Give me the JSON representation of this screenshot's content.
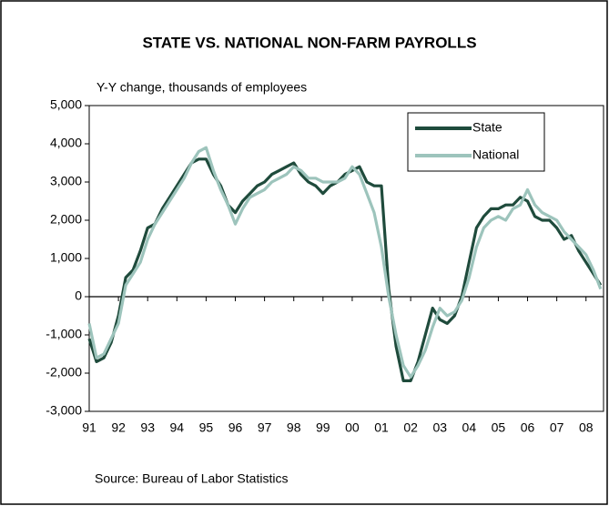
{
  "chart_data": {
    "type": "line",
    "title": "STATE VS. NATIONAL NON-FARM PAYROLLS",
    "y_label": "Y-Y change, thousands of employees",
    "source": "Source: Bureau of Labor Statistics",
    "legend": "upper right",
    "grid": false,
    "xlim": [
      1991,
      2008.6
    ],
    "ylim": [
      -3000,
      5000
    ],
    "xticks": [
      {
        "value": 1991,
        "label": "91"
      },
      {
        "value": 1992,
        "label": "92"
      },
      {
        "value": 1993,
        "label": "93"
      },
      {
        "value": 1994,
        "label": "94"
      },
      {
        "value": 1995,
        "label": "95"
      },
      {
        "value": 1996,
        "label": "96"
      },
      {
        "value": 1997,
        "label": "97"
      },
      {
        "value": 1998,
        "label": "98"
      },
      {
        "value": 1999,
        "label": "99"
      },
      {
        "value": 2000,
        "label": "00"
      },
      {
        "value": 2001,
        "label": "01"
      },
      {
        "value": 2002,
        "label": "02"
      },
      {
        "value": 2003,
        "label": "03"
      },
      {
        "value": 2004,
        "label": "04"
      },
      {
        "value": 2005,
        "label": "05"
      },
      {
        "value": 2006,
        "label": "06"
      },
      {
        "value": 2007,
        "label": "07"
      },
      {
        "value": 2008,
        "label": "08"
      }
    ],
    "yticks": [
      {
        "value": 5000,
        "label": "5,000"
      },
      {
        "value": 4000,
        "label": "4,000"
      },
      {
        "value": 3000,
        "label": "3,000"
      },
      {
        "value": 2000,
        "label": "2,000"
      },
      {
        "value": 1000,
        "label": "1,000"
      },
      0,
      {
        "value": -1000,
        "label": "-1,000"
      },
      {
        "value": -2000,
        "label": "-2,000"
      },
      {
        "value": -3000,
        "label": "-3,000"
      }
    ],
    "x": [
      1991,
      1991.25,
      1991.5,
      1991.75,
      1992,
      1992.25,
      1992.5,
      1992.75,
      1993,
      1993.25,
      1993.5,
      1993.75,
      1994,
      1994.25,
      1994.5,
      1994.75,
      1995,
      1995.25,
      1995.5,
      1995.75,
      1996,
      1996.25,
      1996.5,
      1996.75,
      1997,
      1997.25,
      1997.5,
      1997.75,
      1998,
      1998.25,
      1998.5,
      1998.75,
      1999,
      1999.25,
      1999.5,
      1999.75,
      2000,
      2000.25,
      2000.5,
      2000.75,
      2001,
      2001.25,
      2001.5,
      2001.75,
      2002,
      2002.25,
      2002.5,
      2002.75,
      2003,
      2003.25,
      2003.5,
      2003.75,
      2004,
      2004.25,
      2004.5,
      2004.75,
      2005,
      2005.25,
      2005.5,
      2005.75,
      2006,
      2006.25,
      2006.5,
      2006.75,
      2007,
      2007.25,
      2007.5,
      2007.75,
      2008,
      2008.25,
      2008.5
    ],
    "series": [
      {
        "name": "State",
        "color": "#1f4b3c",
        "values": [
          -1100,
          -1700,
          -1600,
          -1200,
          -500,
          500,
          700,
          1200,
          1800,
          1900,
          2300,
          2600,
          2900,
          3200,
          3500,
          3600,
          3600,
          3200,
          2900,
          2400,
          2200,
          2500,
          2700,
          2900,
          3000,
          3200,
          3300,
          3400,
          3500,
          3200,
          3000,
          2900,
          2700,
          2900,
          3000,
          3200,
          3300,
          3400,
          3000,
          2900,
          2900,
          200,
          -1300,
          -2200,
          -2200,
          -1700,
          -1000,
          -300,
          -600,
          -700,
          -500,
          0,
          900,
          1800,
          2100,
          2300,
          2300,
          2400,
          2400,
          2600,
          2500,
          2100,
          2000,
          2000,
          1800,
          1500,
          1600,
          1200,
          900,
          600,
          300
        ]
      },
      {
        "name": "National",
        "color": "#9dc4bc",
        "values": [
          -700,
          -1600,
          -1500,
          -1100,
          -700,
          300,
          600,
          900,
          1500,
          1900,
          2200,
          2500,
          2800,
          3100,
          3500,
          3800,
          3900,
          3300,
          2800,
          2400,
          1900,
          2300,
          2600,
          2700,
          2800,
          3000,
          3100,
          3200,
          3400,
          3300,
          3100,
          3100,
          3000,
          3000,
          3000,
          3100,
          3400,
          3200,
          2700,
          2200,
          1300,
          0,
          -1000,
          -1800,
          -2100,
          -1800,
          -1400,
          -800,
          -300,
          -500,
          -400,
          -100,
          500,
          1300,
          1800,
          2000,
          2100,
          2000,
          2300,
          2400,
          2800,
          2400,
          2200,
          2100,
          2000,
          1700,
          1500,
          1300,
          1100,
          700,
          200
        ]
      }
    ]
  }
}
